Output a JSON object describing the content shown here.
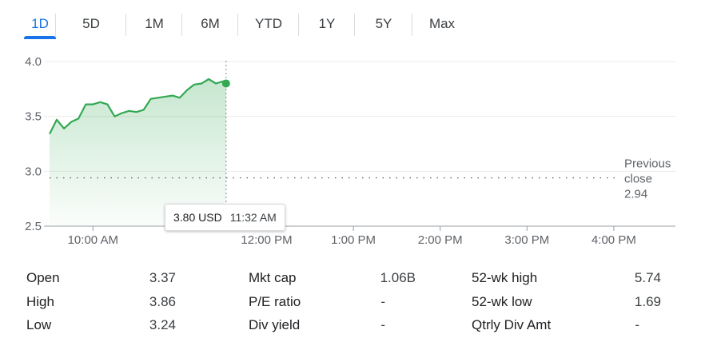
{
  "tabs": [
    {
      "label": "1D",
      "active": true
    },
    {
      "label": "5D",
      "active": false
    },
    {
      "label": "1M",
      "active": false
    },
    {
      "label": "6M",
      "active": false
    },
    {
      "label": "YTD",
      "active": false
    },
    {
      "label": "1Y",
      "active": false
    },
    {
      "label": "5Y",
      "active": false
    },
    {
      "label": "Max",
      "active": false
    }
  ],
  "chart_data": {
    "type": "area",
    "x_ticks": [
      "10:00 AM",
      "12:00 PM",
      "1:00 PM",
      "2:00 PM",
      "3:00 PM",
      "4:00 PM"
    ],
    "y_ticks": [
      "4.0",
      "3.5",
      "3.0",
      "2.5"
    ],
    "ylim": [
      2.5,
      4.0
    ],
    "series": [
      {
        "x": [
          "9:30",
          "9:35",
          "9:40",
          "9:45",
          "9:50",
          "9:55",
          "10:00",
          "10:05",
          "10:10",
          "10:15",
          "10:20",
          "10:25",
          "10:30",
          "10:35",
          "10:40",
          "10:45",
          "10:50",
          "10:55",
          "11:00",
          "11:05",
          "11:10",
          "11:15",
          "11:20",
          "11:25",
          "11:30",
          "11:32"
        ],
        "values": [
          3.34,
          3.47,
          3.39,
          3.45,
          3.48,
          3.61,
          3.61,
          3.63,
          3.61,
          3.5,
          3.53,
          3.55,
          3.54,
          3.56,
          3.66,
          3.67,
          3.68,
          3.69,
          3.67,
          3.74,
          3.79,
          3.8,
          3.84,
          3.8,
          3.82,
          3.8
        ],
        "color": "#34a853"
      }
    ],
    "previous_close": {
      "label": "Previous close",
      "value": 2.94
    },
    "tooltip": {
      "price": "3.80 USD",
      "time": "11:32 AM"
    },
    "grid": true
  },
  "stats": [
    [
      {
        "label": "Open",
        "value": "3.37"
      },
      {
        "label": "Mkt cap",
        "value": "1.06B"
      },
      {
        "label": "52-wk high",
        "value": "5.74"
      }
    ],
    [
      {
        "label": "High",
        "value": "3.86"
      },
      {
        "label": "P/E ratio",
        "value": "-"
      },
      {
        "label": "52-wk low",
        "value": "1.69"
      }
    ],
    [
      {
        "label": "Low",
        "value": "3.24"
      },
      {
        "label": "Div yield",
        "value": "-"
      },
      {
        "label": "Qtrly Div Amt",
        "value": "-"
      }
    ]
  ]
}
